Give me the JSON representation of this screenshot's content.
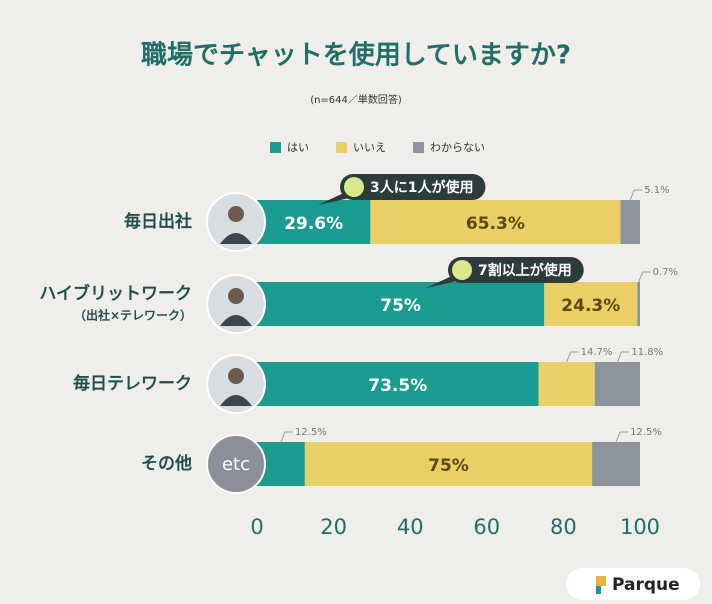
{
  "chart_data": {
    "type": "stacked-bar-horizontal",
    "title": "職場でチャットを使用していますか?",
    "subtitle": "(n=644／単数回答)",
    "categories": [
      "毎日出社",
      "ハイブリットワーク",
      "毎日テレワーク",
      "その他"
    ],
    "category_subtitles": [
      null,
      "（出社×テレワーク）",
      null,
      null
    ],
    "series": [
      {
        "name": "はい",
        "color": "#1b9a8f",
        "values": [
          29.6,
          75,
          73.5,
          12.5
        ],
        "value_labels": [
          "29.6%",
          "75%",
          "73.5%",
          "12.5%"
        ]
      },
      {
        "name": "いいえ",
        "color": "#e9cf66",
        "values": [
          65.3,
          24.3,
          14.7,
          75
        ],
        "value_labels": [
          "65.3%",
          "24.3%",
          "14.7%",
          "75%"
        ]
      },
      {
        "name": "わからない",
        "color": "#8e949d",
        "values": [
          5.1,
          0.7,
          11.8,
          12.5
        ],
        "value_labels": [
          "5.1%",
          "0.7%",
          "11.8%",
          "12.5%"
        ]
      }
    ],
    "xlim": [
      0,
      100
    ],
    "xticks": [
      0,
      20,
      40,
      60,
      80,
      100
    ],
    "annotations": [
      "3人に1人が使用",
      "7割以上が使用"
    ],
    "icon_label": "etc",
    "logo": "Parque"
  }
}
